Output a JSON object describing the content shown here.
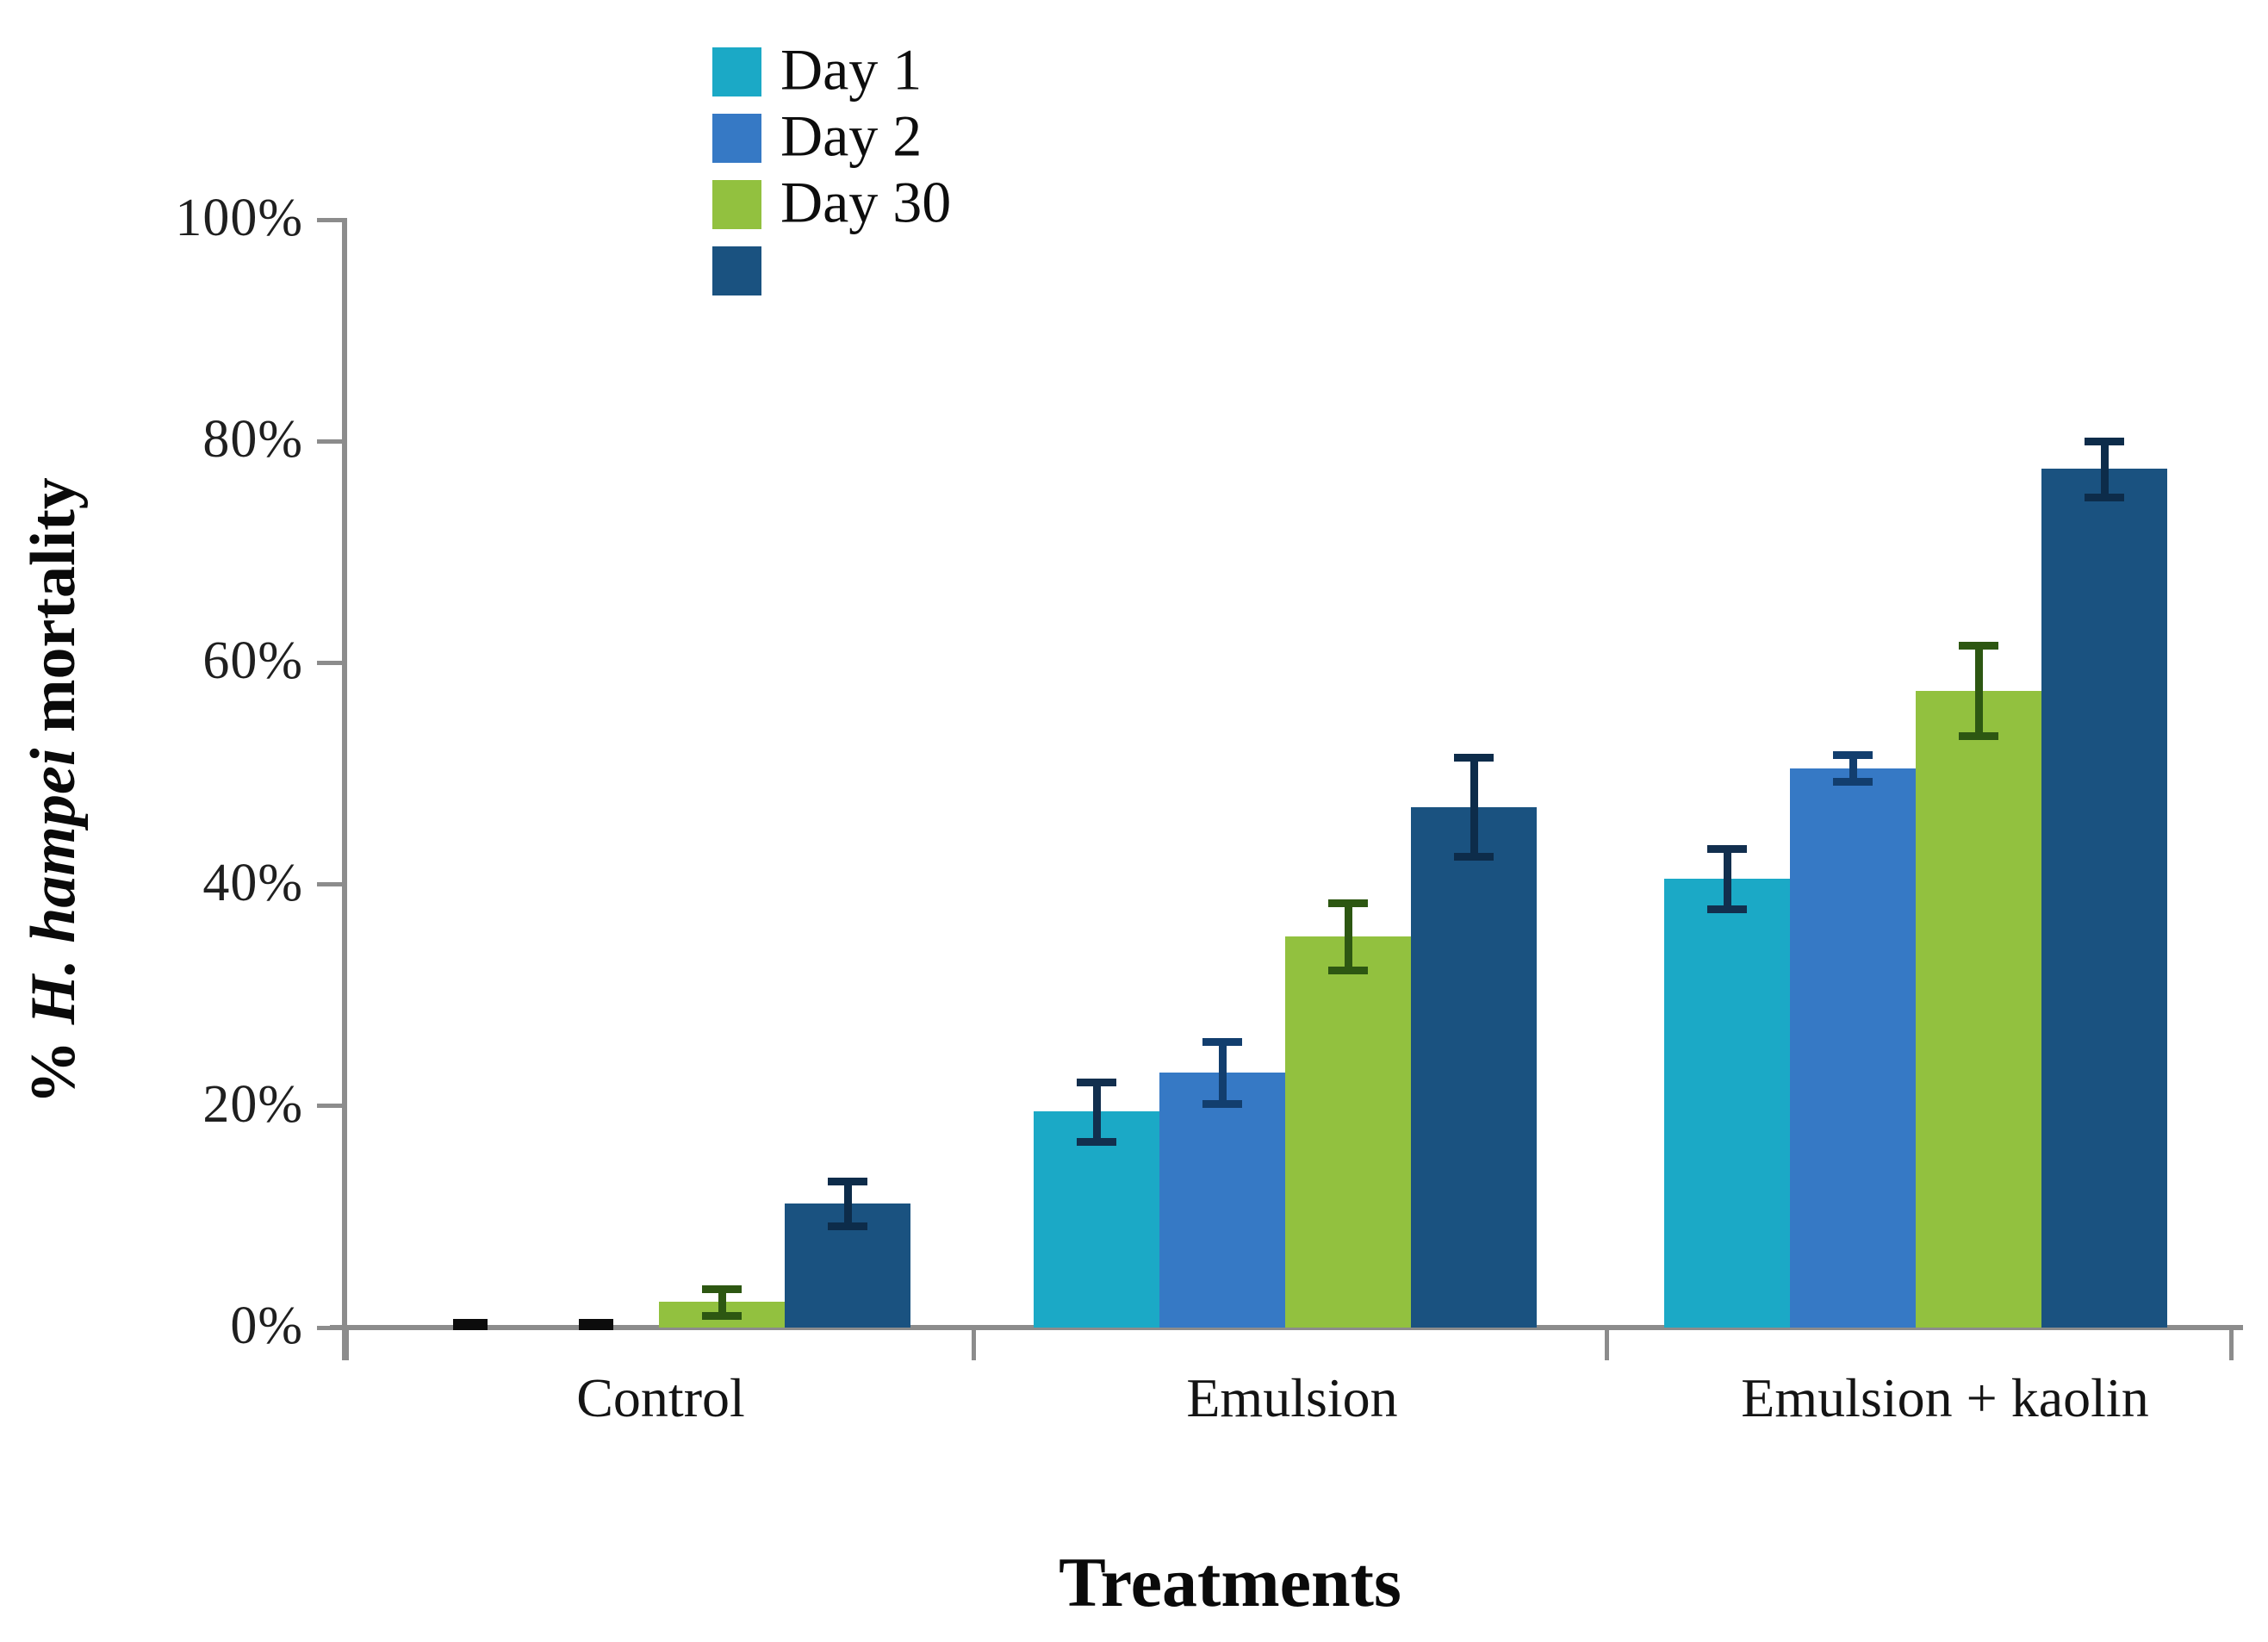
{
  "figure": {
    "background": "#ffffff",
    "axis_color": "#8c8c8c"
  },
  "chart_data": {
    "type": "bar",
    "title": "",
    "xlabel": "Treatments",
    "ylabel": "% H. hampei mortality",
    "ylabel_prefix": "% ",
    "ylabel_italic": "H. hampei",
    "ylabel_suffix": " mortality",
    "categories": [
      "Control",
      "Emulsion",
      "Emulsion + kaolin"
    ],
    "series": [
      {
        "name": "Day 1",
        "color": "#1BA9C6",
        "error_color": "#122f4e",
        "values": [
          0,
          19.5,
          40.5
        ],
        "errors": [
          0,
          2.7,
          2.7
        ]
      },
      {
        "name": "Day 2",
        "color": "#3679C5",
        "error_color": "#123e6e",
        "values": [
          0,
          23,
          50.5
        ],
        "errors": [
          0,
          2.8,
          1.2
        ]
      },
      {
        "name": "Day 30",
        "color": "#92C13F",
        "error_color": "#2d5712",
        "values": [
          2.3,
          35.3,
          57.5
        ],
        "errors": [
          1.2,
          3,
          4.1
        ]
      },
      {
        "name": "",
        "color": "#1A5280",
        "error_color": "#0d2c4a",
        "values": [
          11.2,
          47,
          77.5
        ],
        "errors": [
          2,
          4.5,
          2.5
        ]
      }
    ],
    "yticks": [
      "0%",
      "20%",
      "40%",
      "60%",
      "80%",
      "100%"
    ],
    "ylim": [
      0,
      100
    ],
    "grid": false,
    "legend_position": "top-center",
    "error_bars": true
  }
}
